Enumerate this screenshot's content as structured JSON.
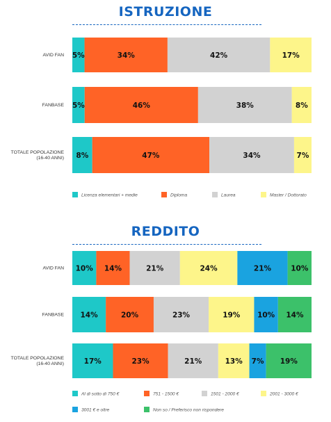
{
  "chart_data": [
    {
      "type": "bar",
      "stacked": true,
      "orientation": "horizontal",
      "title": "ISTRUZIONE",
      "categories": [
        [
          "AVID FAN"
        ],
        [
          "FANBASE"
        ],
        [
          "TOTALE POPOLAZIONE",
          "(16-40 ANNI)"
        ]
      ],
      "series": [
        {
          "name": "Licenza elementari + medie",
          "color": "#1ec8c8",
          "values": [
            5,
            5,
            8
          ]
        },
        {
          "name": "Diploma",
          "color": "#ff6326",
          "values": [
            34,
            46,
            47
          ]
        },
        {
          "name": "Laurea",
          "color": "#d2d2d2",
          "values": [
            42,
            38,
            34
          ]
        },
        {
          "name": "Master / Dottorato",
          "color": "#fdf58a",
          "values": [
            17,
            8,
            7
          ]
        }
      ],
      "value_suffix": "%",
      "legend": "bottom"
    },
    {
      "type": "bar",
      "stacked": true,
      "orientation": "horizontal",
      "title": "REDDITO",
      "categories": [
        [
          "AVID FAN"
        ],
        [
          "FANBASE"
        ],
        [
          "TOTALE POPOLAZIONE",
          "(16-40 ANNI)"
        ]
      ],
      "series": [
        {
          "name": "Al di sotto di 750 €",
          "color": "#1ec8c8",
          "values": [
            10,
            14,
            17
          ]
        },
        {
          "name": "751 - 1500 €",
          "color": "#ff6326",
          "values": [
            14,
            20,
            23
          ]
        },
        {
          "name": "1501 - 2000 €",
          "color": "#d2d2d2",
          "values": [
            21,
            23,
            21
          ]
        },
        {
          "name": "2001 - 3000 €",
          "color": "#fdf58a",
          "values": [
            24,
            19,
            13
          ]
        },
        {
          "name": "3001 € e oltre",
          "color": "#1aa3e0",
          "values": [
            21,
            10,
            7
          ]
        },
        {
          "name": "Non so / Preferisco non rispondere",
          "color": "#3cc16a",
          "values": [
            10,
            14,
            19
          ]
        }
      ],
      "value_suffix": "%",
      "legend": "bottom"
    }
  ]
}
